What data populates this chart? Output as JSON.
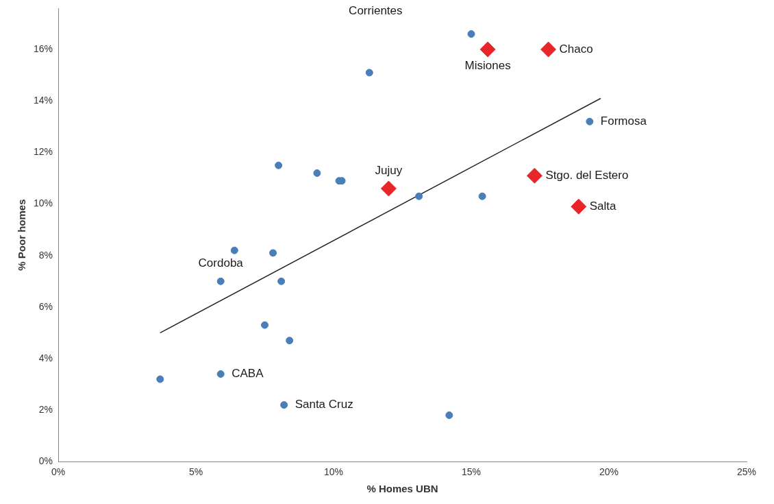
{
  "chart_data": {
    "type": "scatter",
    "xlabel": "% Homes UBN",
    "ylabel": "% Poor homes",
    "marker": "circle",
    "grid": false,
    "xlim": [
      0,
      25
    ],
    "ylim": [
      0,
      17.6
    ],
    "xticks": [
      {
        "value": 0,
        "label": "0%"
      },
      {
        "value": 5,
        "label": "5%"
      },
      {
        "value": 10,
        "label": "10%"
      },
      {
        "value": 15,
        "label": "15%"
      },
      {
        "value": 20,
        "label": "20%"
      },
      {
        "value": 25,
        "label": "25%"
      }
    ],
    "yticks": [
      {
        "value": 0,
        "label": "0%"
      },
      {
        "value": 2,
        "label": "2%"
      },
      {
        "value": 4,
        "label": "4%"
      },
      {
        "value": 6,
        "label": "6%"
      },
      {
        "value": 8,
        "label": "8%"
      },
      {
        "value": 10,
        "label": "10%"
      },
      {
        "value": 12,
        "label": "12%"
      },
      {
        "value": 14,
        "label": "14%"
      },
      {
        "value": 16,
        "label": "16%"
      }
    ],
    "series": [
      {
        "type": "scatter",
        "color": "#4a7ebb",
        "x": [
          3.7,
          5.9,
          8.2,
          14.2,
          7.5,
          8.4,
          5.9,
          8.1,
          6.4,
          7.8,
          8.0,
          9.4,
          10.2,
          10.3,
          13.1,
          15.4,
          11.3,
          15.0,
          19.3
        ],
        "values": [
          3.2,
          3.4,
          2.2,
          1.8,
          5.3,
          4.7,
          7.0,
          7.0,
          8.2,
          8.1,
          11.5,
          11.2,
          10.9,
          10.9,
          10.3,
          10.3,
          15.1,
          16.6,
          13.2
        ]
      },
      {
        "type": "scatter",
        "marker": "diamond",
        "color": "#e8262a",
        "x": [
          15.6,
          17.8,
          12.0,
          17.3,
          18.9
        ],
        "values": [
          16.0,
          16.0,
          10.6,
          11.1,
          9.9
        ]
      },
      {
        "type": "line",
        "marker": "none",
        "color": "#262626",
        "x": [
          3.7,
          19.7
        ],
        "values": [
          5.0,
          14.1
        ]
      }
    ],
    "annotations": [
      "Corrientes",
      {
        "text": "Chaco",
        "x": 17.8,
        "y": 16.0
      },
      {
        "text": "Misiones",
        "x": 15.6,
        "y": 16.0
      },
      {
        "text": "Formosa",
        "x": 19.3,
        "y": 13.2
      },
      {
        "text": "Jujuy",
        "x": 12.0,
        "y": 10.6
      },
      {
        "text": "Stgo. del Estero",
        "x": 17.3,
        "y": 11.1
      },
      {
        "text": "Salta",
        "x": 18.9,
        "y": 9.9
      },
      {
        "text": "Cordoba",
        "x": 5.9,
        "y": 7.0
      },
      {
        "text": "CABA",
        "x": 5.9,
        "y": 3.4
      },
      {
        "text": "Santa Cruz",
        "x": 8.2,
        "y": 2.2
      }
    ]
  }
}
